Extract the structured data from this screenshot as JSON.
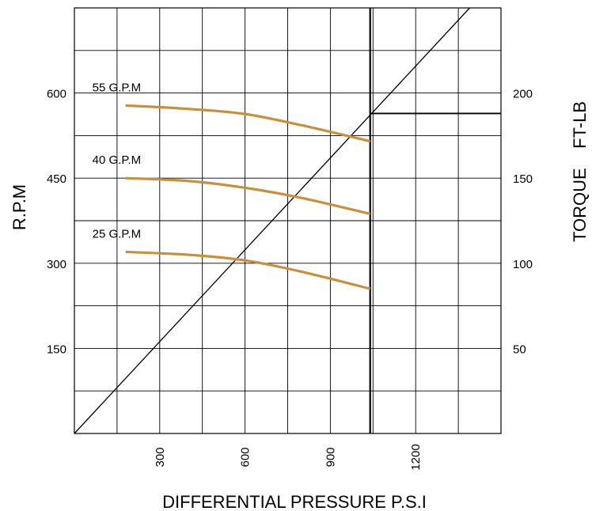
{
  "chart_data": {
    "type": "line",
    "xlabel": "DIFFERENTIAL PRESSURE  P.S.I",
    "ylabel_left": "R.P.M",
    "ylabel_right": "TORQUE    FT-LB",
    "xlim": [
      0,
      1500
    ],
    "ylim_left": [
      0,
      750
    ],
    "ylim_right": [
      0,
      250
    ],
    "x_ticks": [
      300,
      600,
      900,
      1200
    ],
    "y_left_ticks": [
      150,
      300,
      450,
      600
    ],
    "y_right_ticks": [
      50,
      100,
      150,
      200
    ],
    "grid": true,
    "colors": {
      "series": "#c8903a",
      "grid": "#000000",
      "axis": "#000000"
    },
    "series": [
      {
        "name": "55 G.P.M",
        "x": [
          180,
          400,
          600,
          800,
          1040
        ],
        "y": [
          578,
          572,
          563,
          543,
          515
        ]
      },
      {
        "name": "40 G.P.M",
        "x": [
          180,
          400,
          600,
          800,
          1040
        ],
        "y": [
          450,
          445,
          433,
          415,
          387
        ]
      },
      {
        "name": "25 G.P.M",
        "x": [
          180,
          400,
          600,
          800,
          1040
        ],
        "y": [
          320,
          315,
          305,
          285,
          255
        ]
      }
    ],
    "torque_line": {
      "x": [
        0,
        1390
      ],
      "y_torque": [
        0,
        250
      ]
    },
    "max_pressure_line": {
      "x": 1040
    },
    "max_torque_line": {
      "y_torque": 188,
      "x_range": [
        1040,
        1500
      ]
    }
  }
}
